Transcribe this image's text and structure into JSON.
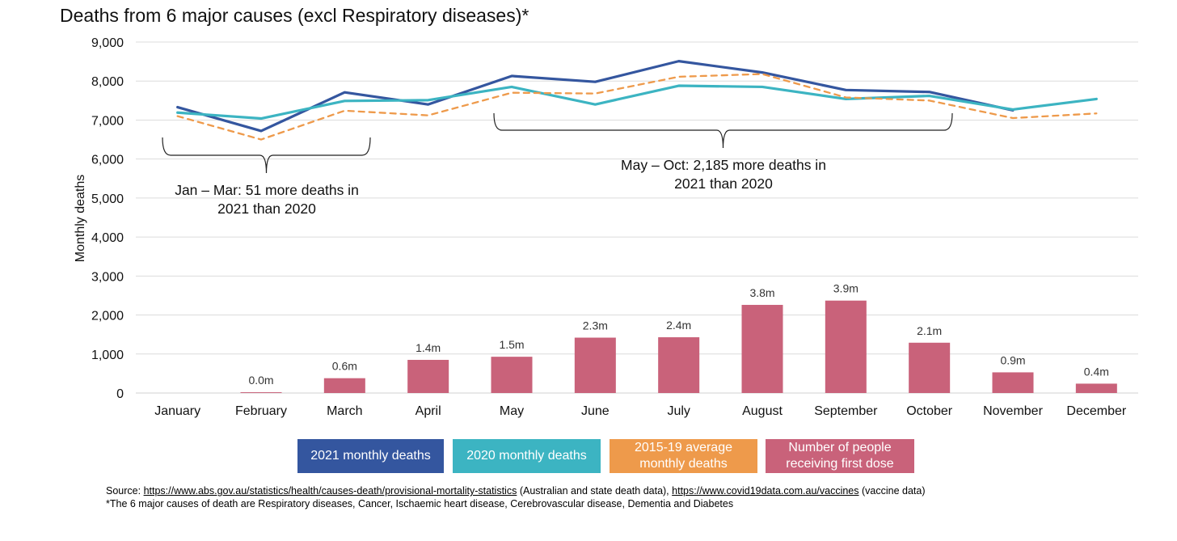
{
  "chart_data": {
    "type": "bar+line",
    "title": "Deaths from 6 major causes (excl Respiratory diseases)*",
    "ylabel": "Monthly deaths",
    "ylim": [
      0,
      9000
    ],
    "yticks": [
      0,
      1000,
      2000,
      3000,
      4000,
      5000,
      6000,
      7000,
      8000,
      9000
    ],
    "ytick_labels": [
      "0",
      "1,000",
      "2,000",
      "3,000",
      "4,000",
      "5,000",
      "6,000",
      "7,000",
      "8,000",
      "9,000"
    ],
    "grid": true,
    "categories": [
      "January",
      "February",
      "March",
      "April",
      "May",
      "June",
      "July",
      "August",
      "September",
      "October",
      "November",
      "December"
    ],
    "bars": {
      "name": "Number of people receiving first dose",
      "color": "#C9627A",
      "values": [
        0,
        20,
        380,
        850,
        930,
        1420,
        1430,
        2260,
        2370,
        1290,
        530,
        240
      ],
      "labels": [
        "",
        "0.0m",
        "0.6m",
        "1.4m",
        "1.5m",
        "2.3m",
        "2.4m",
        "3.8m",
        "3.9m",
        "2.1m",
        "0.9m",
        "0.4m"
      ]
    },
    "series": [
      {
        "name": "2021 monthly deaths",
        "color": "#34569F",
        "style": "solid",
        "values": [
          7330,
          6720,
          7710,
          7400,
          8130,
          7980,
          8510,
          8220,
          7770,
          7720,
          7250,
          null
        ]
      },
      {
        "name": "2020 monthly deaths",
        "color": "#3CB4C2",
        "style": "solid",
        "values": [
          7190,
          7040,
          7490,
          7510,
          7850,
          7400,
          7880,
          7850,
          7540,
          7620,
          7270,
          7540
        ]
      },
      {
        "name": "2015-19 average monthly deaths",
        "color": "#EE9A4B",
        "style": "dashed",
        "values": [
          7100,
          6500,
          7240,
          7120,
          7700,
          7680,
          8110,
          8180,
          7580,
          7500,
          7050,
          7170
        ]
      }
    ],
    "annotations": [
      {
        "text_line1": "Jan – Mar: 51 more deaths in",
        "text_line2": "2021 than 2020"
      },
      {
        "text_line1": "May – Oct: 2,185 more deaths in",
        "text_line2": "2021 than 2020"
      }
    ],
    "legend": {
      "position": "bottom",
      "items": [
        {
          "label": "2021 monthly deaths",
          "color": "#34569F"
        },
        {
          "label": "2020 monthly deaths",
          "color": "#3CB4C2"
        },
        {
          "label": "2015-19 average monthly deaths",
          "line1": "2015-19 average",
          "line2": "monthly deaths",
          "color": "#EE9A4B"
        },
        {
          "label": "Number of people receiving first dose",
          "line1": "Number of people",
          "line2": "receiving first dose",
          "color": "#C9627A"
        }
      ]
    }
  },
  "source": {
    "prefix": "Source: ",
    "link1": "https://www.abs.gov.au/statistics/health/causes-death/provisional-mortality-statistics",
    "mid": " (Australian and state death data), ",
    "link2": "https://www.covid19data.com.au/vaccines",
    "suffix": " (vaccine data)",
    "footnote": "*The 6 major causes of death are Respiratory diseases, Cancer, Ischaemic heart disease, Cerebrovascular disease, Dementia and Diabetes"
  }
}
